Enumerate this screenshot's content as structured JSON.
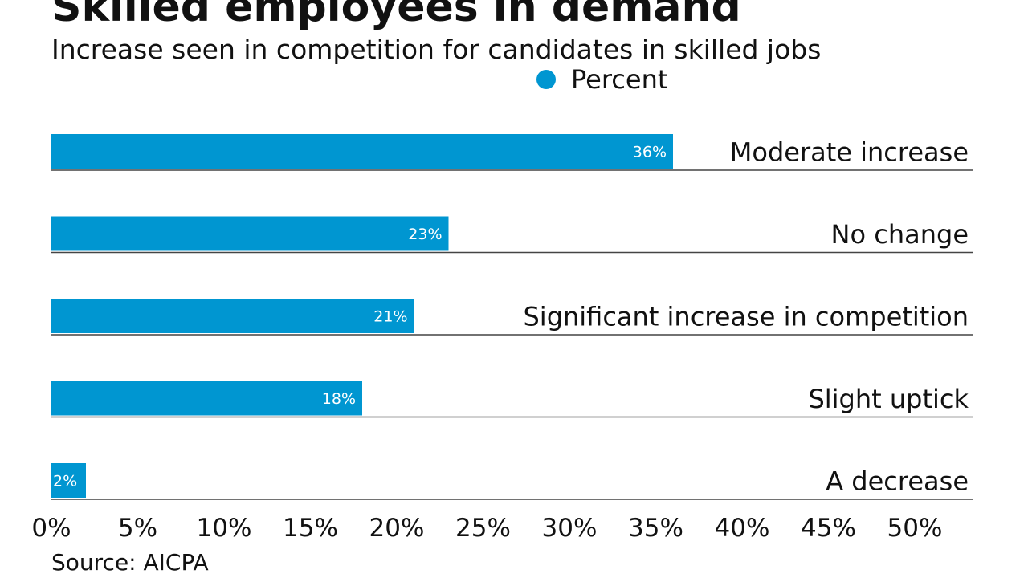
{
  "chart_data": {
    "type": "bar",
    "orientation": "horizontal",
    "title": "Skilled employees in demand",
    "subtitle": "Increase seen in competition for candidates in skilled jobs",
    "legend": {
      "label": "Percent",
      "placement": "top-center"
    },
    "categories": [
      "Moderate increase",
      "No change",
      "Significant increase in competition",
      "Slight uptick",
      "A decrease"
    ],
    "values": [
      36,
      23,
      21,
      18,
      2
    ],
    "value_labels": [
      "36%",
      "23%",
      "21%",
      "18%",
      "2%"
    ],
    "xlim": [
      0,
      50
    ],
    "x_ticks": [
      0,
      5,
      10,
      15,
      20,
      25,
      30,
      35,
      40,
      45,
      50
    ],
    "x_tick_labels": [
      "0%",
      "5%",
      "10%",
      "15%",
      "20%",
      "25%",
      "30%",
      "35%",
      "40%",
      "45%",
      "50%"
    ],
    "grid": false,
    "source": "Source: AICPA",
    "colors": {
      "bar": "#0096d1",
      "text": "#111111",
      "baseline": "#444444"
    }
  }
}
